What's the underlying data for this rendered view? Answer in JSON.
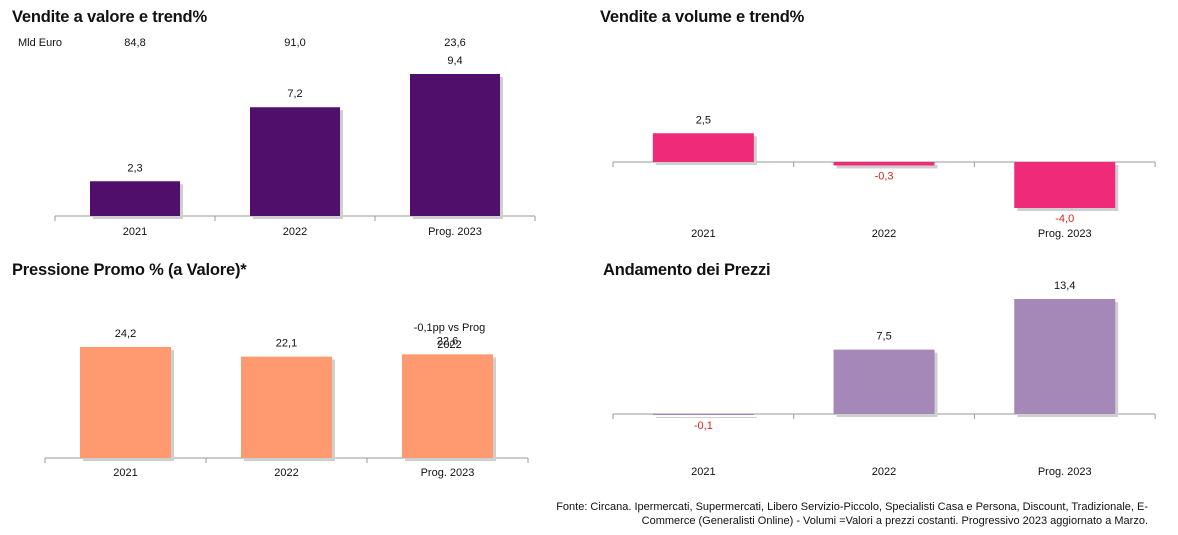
{
  "chart_data": [
    {
      "type": "bar",
      "title": "Vendite a valore e trend%",
      "unit_label": "Mld Euro",
      "categories": [
        "2021",
        "2022",
        "Prog. 2023"
      ],
      "top_labels": [
        "84,8",
        "91,0",
        "23,6"
      ],
      "values": [
        2.3,
        7.2,
        9.4
      ],
      "value_labels": [
        "2,3",
        "7,2",
        "9,4"
      ],
      "color": "#4f0f6b",
      "ylim": [
        0,
        9.4
      ]
    },
    {
      "type": "bar",
      "title": "Vendite a volume e trend%",
      "categories": [
        "2021",
        "2022",
        "Prog. 2023"
      ],
      "values": [
        2.5,
        -0.3,
        -4.0
      ],
      "value_labels": [
        "2,5",
        "-0,3",
        "-4,0"
      ],
      "color": "#ef2a78",
      "negative_label_color": "#d9261c",
      "ylim": [
        -4.0,
        2.5
      ]
    },
    {
      "type": "bar",
      "title": "Pressione Promo % (a Valore)*",
      "categories": [
        "2021",
        "2022",
        "Prog. 2023"
      ],
      "values": [
        24.2,
        22.1,
        22.6
      ],
      "value_labels": [
        "24,2",
        "22,1",
        "22,6"
      ],
      "annotation": [
        "-0,1pp  vs Prog",
        "2022"
      ],
      "color": "#ff9a70"
    },
    {
      "type": "bar",
      "title": "Andamento dei Prezzi",
      "categories": [
        "2021",
        "2022",
        "Prog. 2023"
      ],
      "values": [
        -0.1,
        7.5,
        13.4
      ],
      "value_labels": [
        "-0,1",
        "7,5",
        "13,4"
      ],
      "color": "#a587b8",
      "negative_label_color": "#d9261c",
      "ylim": [
        -0.1,
        13.4
      ]
    }
  ],
  "footer": {
    "line1": "Fonte: Circana. Ipermercati, Supermercati, Libero Servizio-Piccolo, Specialisti Casa e Persona, Discount, Tradizionale, E-",
    "line2": "Commerce (Generalisti Online) -  Volumi =Valori a prezzi costanti. Progressivo 2023 aggiornato a Marzo."
  }
}
